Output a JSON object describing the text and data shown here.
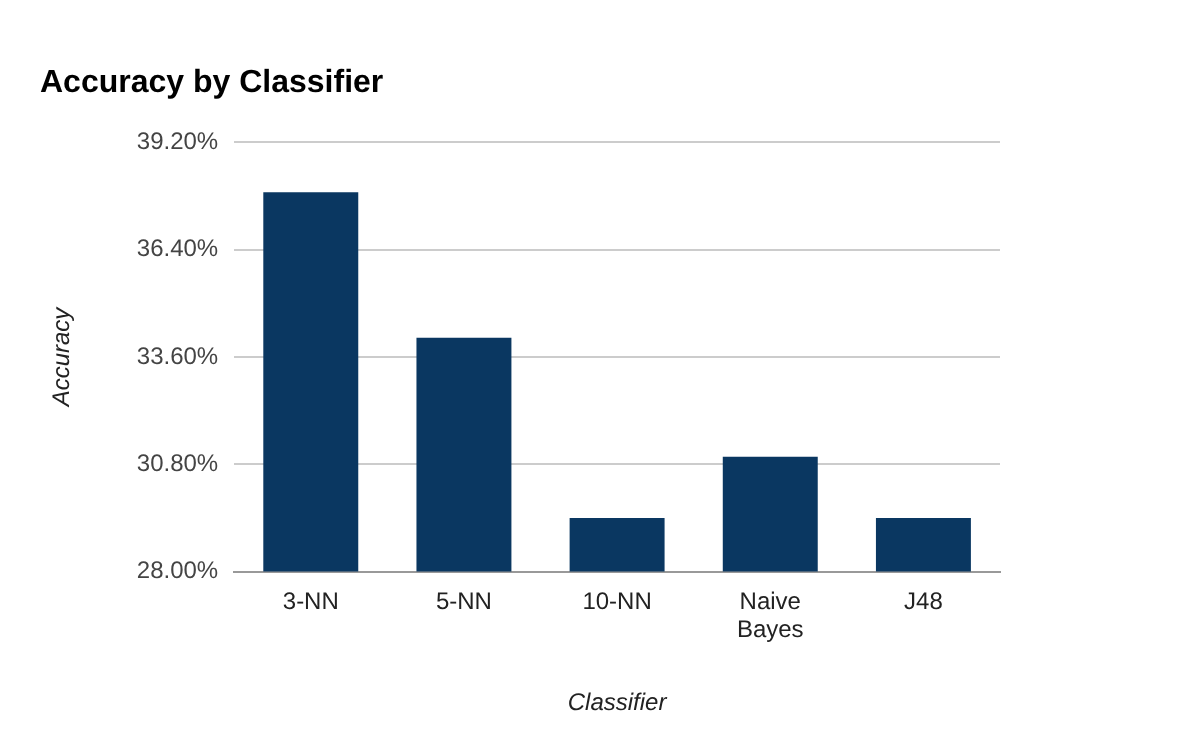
{
  "chart_data": {
    "type": "bar",
    "title": "Accuracy by Classifier",
    "xlabel": "Classifier",
    "ylabel": "Accuracy",
    "categories": [
      "3-NN",
      "5-NN",
      "10-NN",
      "Naive Bayes",
      "J48"
    ],
    "values": [
      37.9,
      34.1,
      29.4,
      31.0,
      29.4
    ],
    "color": "#0a3761",
    "ylim": [
      28,
      39.2
    ],
    "yticks": [
      {
        "value": 28,
        "label": "28.00%"
      },
      {
        "value": 30.8,
        "label": "30.80%"
      },
      {
        "value": 33.6,
        "label": "33.60%"
      },
      {
        "value": 36.4,
        "label": "36.40%"
      },
      {
        "value": 39.2,
        "label": "39.20%"
      }
    ],
    "grid": "y"
  }
}
